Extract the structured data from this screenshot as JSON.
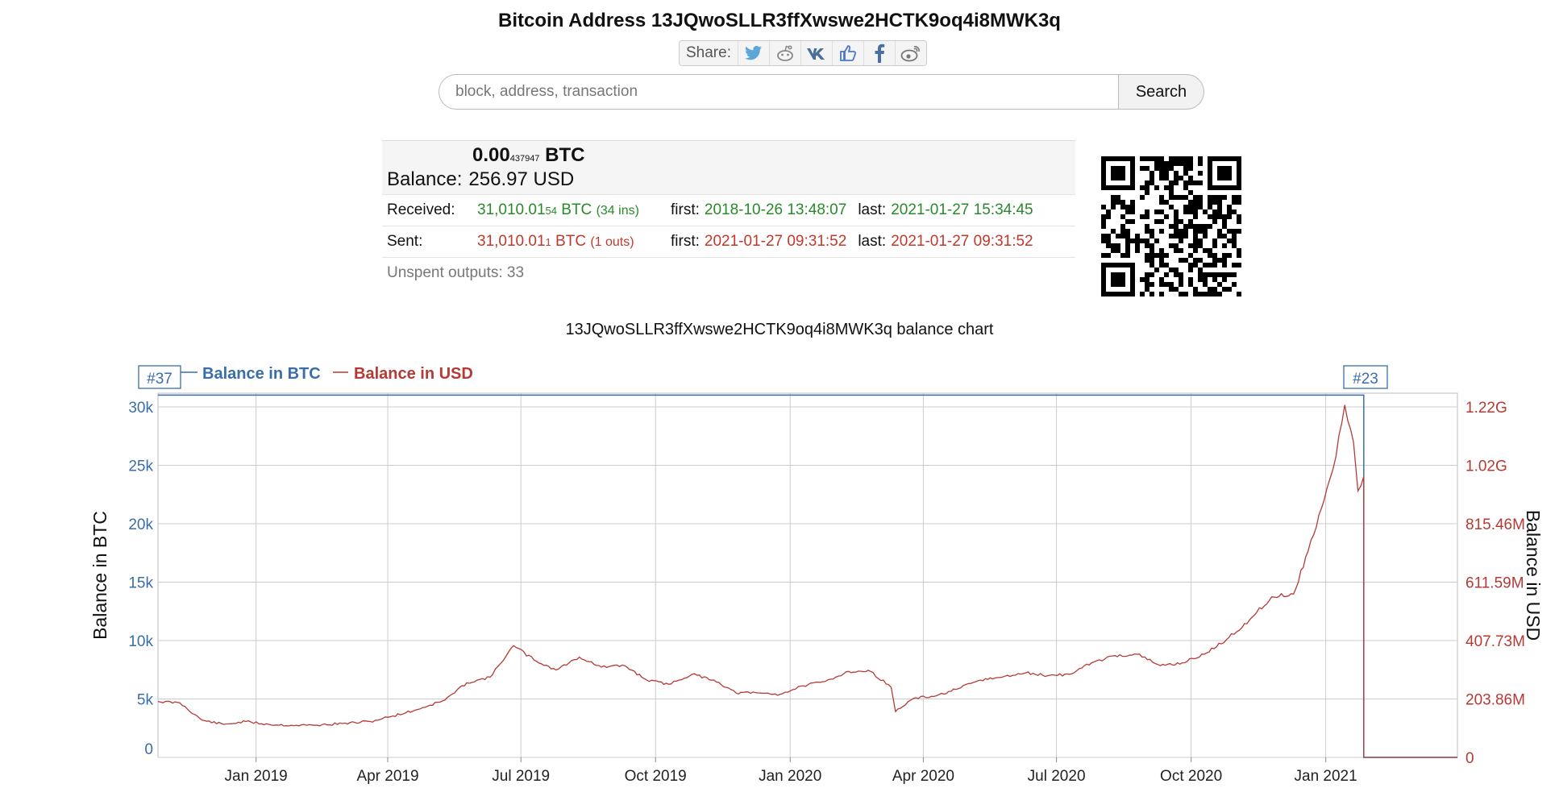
{
  "header": {
    "title": "Bitcoin Address 13JQwoSLLR3ffXwswe2HCTK9oq4i8MWK3q",
    "share_label": "Share:",
    "share_icons": [
      "twitter-icon",
      "reddit-icon",
      "vk-icon",
      "like-icon",
      "facebook-icon",
      "weibo-icon"
    ]
  },
  "search": {
    "placeholder": "block, address, transaction",
    "button": "Search"
  },
  "balance": {
    "label": "Balance:",
    "btc_main": "0.00",
    "btc_small": "437947",
    "btc_unit": "BTC",
    "usd": "256.97 USD"
  },
  "received": {
    "label": "Received:",
    "amount_main": "31,010.01",
    "amount_small": "54",
    "unit": "BTC",
    "count": "(34 ins)",
    "first_label": "first:",
    "first": "2018-10-26 13:48:07",
    "last_label": "last:",
    "last": "2021-01-27 15:34:45"
  },
  "sent": {
    "label": "Sent:",
    "amount_main": "31,010.01",
    "amount_small": "1",
    "unit": "BTC",
    "count": "(1 outs)",
    "first_label": "first:",
    "first": "2021-01-27 09:31:52",
    "last_label": "last:",
    "last": "2021-01-27 09:31:52"
  },
  "unspent": "Unspent outputs: 33",
  "colors": {
    "btc": "#3a6ea8",
    "usd": "#b53a35",
    "green": "#2a8a2a"
  },
  "chart_data": {
    "type": "line",
    "title": "13JQwoSLLR3ffXwswe2HCTK9oq4i8MWK3q balance chart",
    "ylabel": "Balance in BTC",
    "y2label": "Balance in USD",
    "legend": [
      "Balance in BTC",
      "Balance in USD"
    ],
    "xlim": [
      "2018-10-26",
      "2021-04-01"
    ],
    "ylim": [
      0,
      30000
    ],
    "y2lim": [
      0,
      1223160000
    ],
    "x_ticks": [
      "Jan 2019",
      "Apr 2019",
      "Jul 2019",
      "Oct 2019",
      "Jan 2020",
      "Apr 2020",
      "Jul 2020",
      "Oct 2020",
      "Jan 2021"
    ],
    "y_ticks": [
      "0",
      "5k",
      "10k",
      "15k",
      "20k",
      "25k",
      "30k"
    ],
    "y2_ticks": [
      "0",
      "203.86M",
      "407.73M",
      "611.59M",
      "815.46M",
      "1.02G",
      "1.22G"
    ],
    "annotations": [
      "#37",
      "#23"
    ],
    "series": [
      {
        "name": "Balance in BTC",
        "x": [
          "2018-10-26",
          "2021-01-27",
          "2021-01-27",
          "2021-04-01"
        ],
        "values": [
          31010,
          31010,
          0,
          0
        ]
      },
      {
        "name": "Balance in USD",
        "x": [
          "2018-10-26",
          "2018-11-10",
          "2018-11-25",
          "2018-12-10",
          "2018-12-25",
          "2019-01-10",
          "2019-01-25",
          "2019-02-10",
          "2019-03-01",
          "2019-03-20",
          "2019-04-01",
          "2019-04-20",
          "2019-05-10",
          "2019-05-25",
          "2019-06-10",
          "2019-06-26",
          "2019-07-10",
          "2019-07-25",
          "2019-08-10",
          "2019-08-25",
          "2019-09-10",
          "2019-09-25",
          "2019-10-10",
          "2019-10-26",
          "2019-11-10",
          "2019-11-25",
          "2019-12-10",
          "2019-12-25",
          "2020-01-10",
          "2020-01-25",
          "2020-02-10",
          "2020-02-25",
          "2020-03-10",
          "2020-03-13",
          "2020-03-25",
          "2020-04-10",
          "2020-04-25",
          "2020-05-10",
          "2020-05-25",
          "2020-06-10",
          "2020-06-25",
          "2020-07-10",
          "2020-07-25",
          "2020-08-10",
          "2020-08-25",
          "2020-09-10",
          "2020-09-25",
          "2020-10-10",
          "2020-10-25",
          "2020-11-10",
          "2020-11-25",
          "2020-12-10",
          "2020-12-20",
          "2020-12-31",
          "2021-01-08",
          "2021-01-14",
          "2021-01-20",
          "2021-01-23",
          "2021-01-27",
          "2021-01-27",
          "2021-04-01"
        ],
        "values": [
          195000000,
          190000000,
          130000000,
          115000000,
          125000000,
          115000000,
          112000000,
          112000000,
          118000000,
          125000000,
          140000000,
          165000000,
          200000000,
          260000000,
          280000000,
          390000000,
          340000000,
          305000000,
          350000000,
          315000000,
          320000000,
          270000000,
          255000000,
          290000000,
          270000000,
          225000000,
          225000000,
          220000000,
          250000000,
          265000000,
          300000000,
          300000000,
          245000000,
          160000000,
          205000000,
          215000000,
          240000000,
          270000000,
          280000000,
          295000000,
          285000000,
          290000000,
          330000000,
          355000000,
          360000000,
          320000000,
          330000000,
          360000000,
          410000000,
          480000000,
          560000000,
          570000000,
          720000000,
          900000000,
          1050000000,
          1230000000,
          1100000000,
          930000000,
          980000000,
          0,
          0
        ]
      }
    ]
  }
}
